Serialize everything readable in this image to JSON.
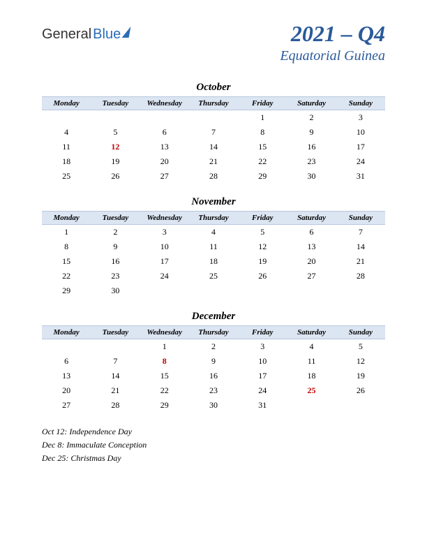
{
  "logo": {
    "part1": "General",
    "part2": "Blue"
  },
  "title": "2021 – Q4",
  "subtitle": "Equatorial Guinea",
  "day_headers": [
    "Monday",
    "Tuesday",
    "Wednesday",
    "Thursday",
    "Friday",
    "Saturday",
    "Sunday"
  ],
  "header_bg": "#dce5f2",
  "header_border": "#b8c8dd",
  "holiday_color": "#c00000",
  "title_color": "#2a5a9a",
  "months": [
    {
      "name": "October",
      "weeks": [
        [
          "",
          "",
          "",
          "",
          "1",
          "2",
          "3"
        ],
        [
          "4",
          "5",
          "6",
          "7",
          "8",
          "9",
          "10"
        ],
        [
          "11",
          "12",
          "13",
          "14",
          "15",
          "16",
          "17"
        ],
        [
          "18",
          "19",
          "20",
          "21",
          "22",
          "23",
          "24"
        ],
        [
          "25",
          "26",
          "27",
          "28",
          "29",
          "30",
          "31"
        ]
      ],
      "holidays": [
        "12"
      ]
    },
    {
      "name": "November",
      "weeks": [
        [
          "1",
          "2",
          "3",
          "4",
          "5",
          "6",
          "7"
        ],
        [
          "8",
          "9",
          "10",
          "11",
          "12",
          "13",
          "14"
        ],
        [
          "15",
          "16",
          "17",
          "18",
          "19",
          "20",
          "21"
        ],
        [
          "22",
          "23",
          "24",
          "25",
          "26",
          "27",
          "28"
        ],
        [
          "29",
          "30",
          "",
          "",
          "",
          "",
          ""
        ]
      ],
      "holidays": []
    },
    {
      "name": "December",
      "weeks": [
        [
          "",
          "",
          "1",
          "2",
          "3",
          "4",
          "5"
        ],
        [
          "6",
          "7",
          "8",
          "9",
          "10",
          "11",
          "12"
        ],
        [
          "13",
          "14",
          "15",
          "16",
          "17",
          "18",
          "19"
        ],
        [
          "20",
          "21",
          "22",
          "23",
          "24",
          "25",
          "26"
        ],
        [
          "27",
          "28",
          "29",
          "30",
          "31",
          "",
          ""
        ]
      ],
      "holidays": [
        "8",
        "25"
      ]
    }
  ],
  "holiday_list": [
    "Oct 12: Independence Day",
    "Dec 8: Immaculate Conception",
    "Dec 25: Christmas Day"
  ]
}
